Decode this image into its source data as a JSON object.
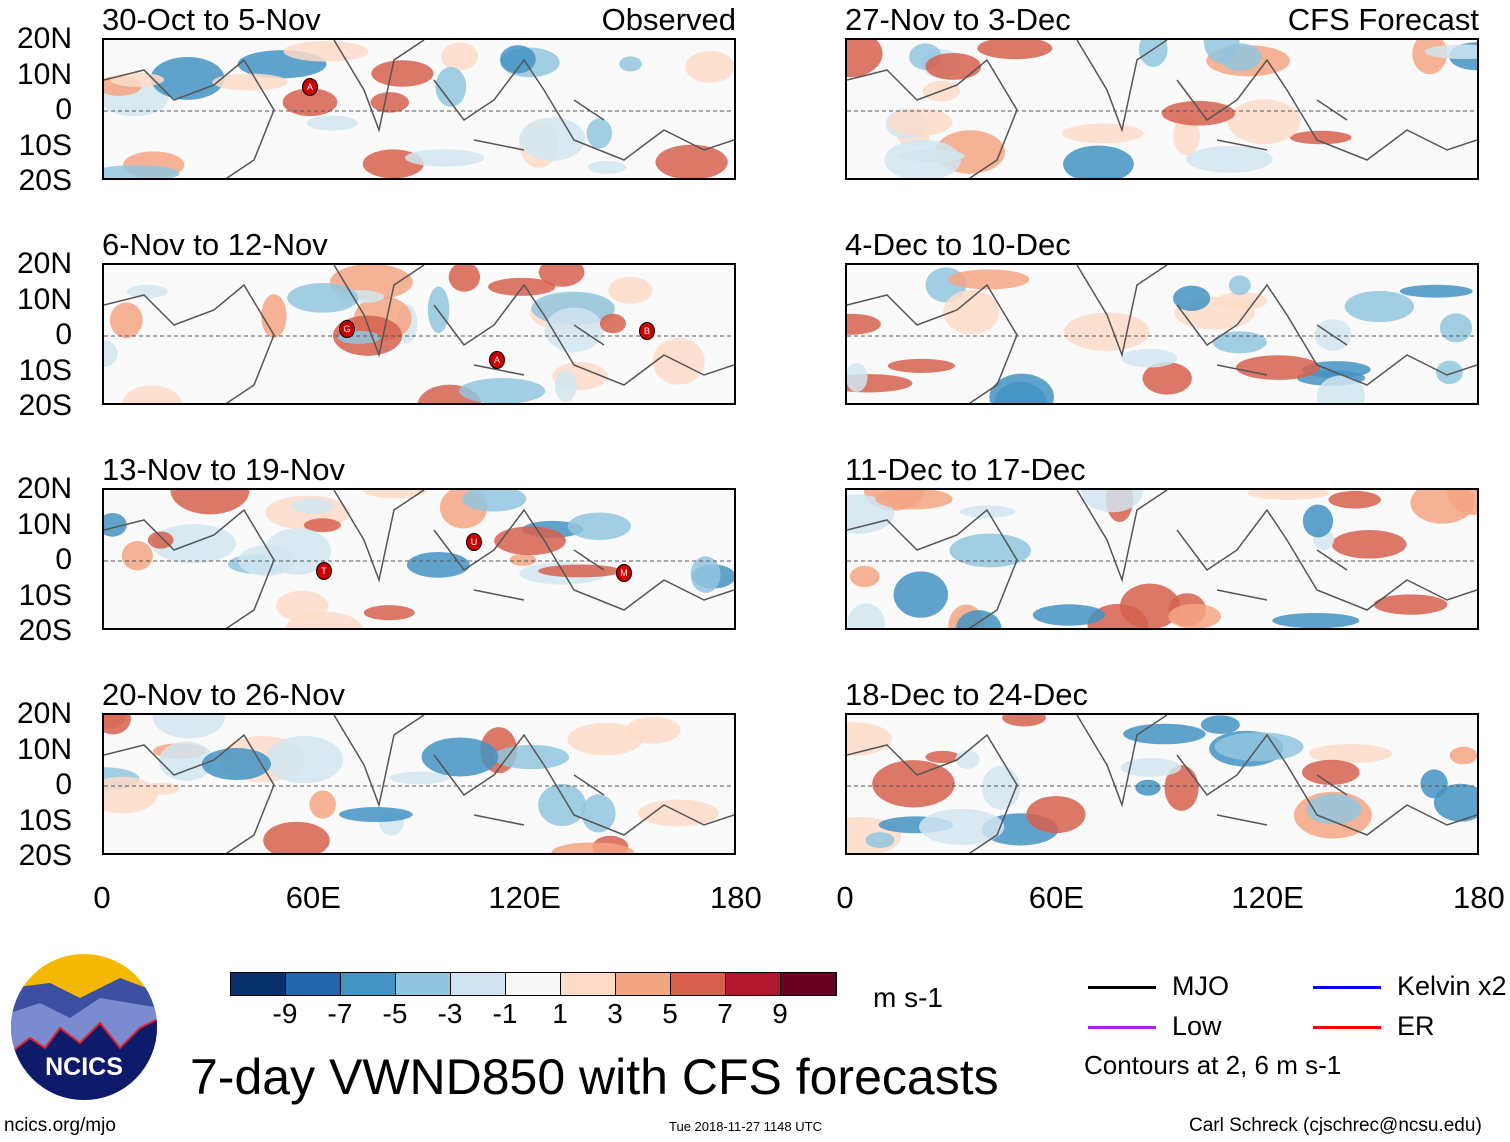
{
  "panels_left": [
    {
      "title": "30-Oct to 5-Nov",
      "tag": "Observed",
      "storms": [
        "A"
      ]
    },
    {
      "title": "6-Nov to 12-Nov",
      "tag": "",
      "storms": [
        "G",
        "A",
        "B"
      ]
    },
    {
      "title": "13-Nov to 19-Nov",
      "tag": "",
      "storms": [
        "T",
        "U",
        "M"
      ]
    },
    {
      "title": "20-Nov to 26-Nov",
      "tag": "",
      "storms": []
    }
  ],
  "panels_right": [
    {
      "title": "27-Nov to 3-Dec",
      "tag": "CFS Forecast"
    },
    {
      "title": "4-Dec to 10-Dec",
      "tag": ""
    },
    {
      "title": "11-Dec to 17-Dec",
      "tag": ""
    },
    {
      "title": "18-Dec to 24-Dec",
      "tag": ""
    }
  ],
  "lat_labels": [
    "20N",
    "10N",
    "0",
    "10S",
    "20S"
  ],
  "lon_labels": [
    "0",
    "60E",
    "120E",
    "180"
  ],
  "colorbar": {
    "colors": [
      "#08306b",
      "#2166ac",
      "#4393c3",
      "#92c5de",
      "#d1e5f0",
      "#f7f7f7",
      "#fddbc7",
      "#f4a582",
      "#d6604d",
      "#b2182b",
      "#67001f"
    ],
    "labels": [
      "-9",
      "-7",
      "-5",
      "-3",
      "-1",
      "1",
      "3",
      "5",
      "7",
      "9"
    ],
    "units": "m s-1"
  },
  "legend": {
    "items": [
      {
        "label": "MJO",
        "color": "#000000"
      },
      {
        "label": "Kelvin x2",
        "color": "#0000ff"
      },
      {
        "label": "Low",
        "color": "#a020f0"
      },
      {
        "label": "ER",
        "color": "#ff0000"
      }
    ],
    "contours": "Contours at 2, 6 m s-1"
  },
  "logo_text": "NCICS",
  "title": "7-day VWND850 with CFS forecasts",
  "footer": {
    "left": "ncics.org/mjo",
    "center": "Tue 2018-11-27 1148 UTC",
    "right": "Carl Schreck (cjschrec@ncsu.edu)"
  }
}
